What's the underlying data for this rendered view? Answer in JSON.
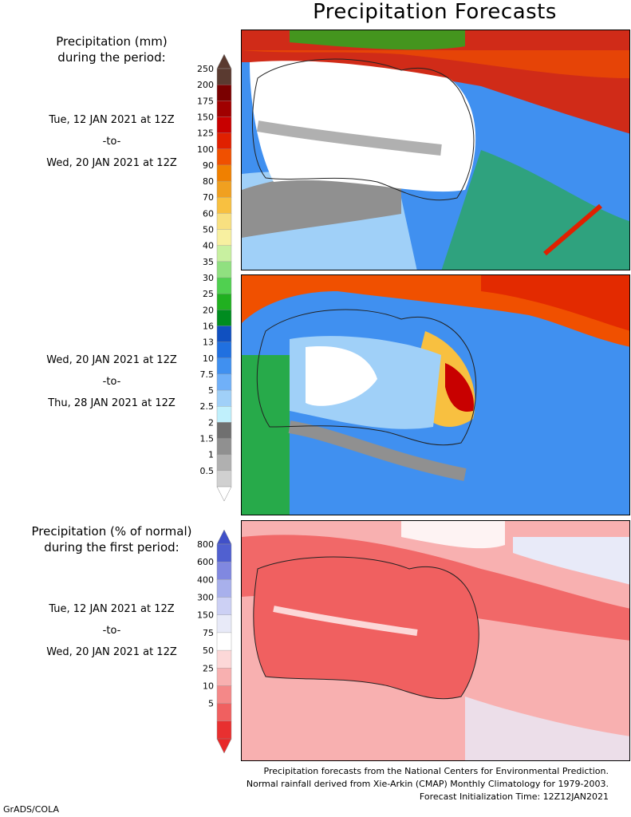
{
  "title": "Precipitation Forecasts",
  "precip_label": {
    "line1": "Precipitation (mm)",
    "line2": "during the period:"
  },
  "period1": {
    "start": "Tue, 12 JAN 2021 at 12Z",
    "sep": "-to-",
    "end": "Wed, 20 JAN 2021 at 12Z"
  },
  "period2": {
    "start": "Wed, 20 JAN 2021 at 12Z",
    "sep": "-to-",
    "end": "Thu, 28 JAN 2021 at 12Z"
  },
  "pct_label": {
    "line1": "Precipitation (% of normal)",
    "line2": "during the first period:"
  },
  "period3": {
    "start": "Tue, 12 JAN 2021 at 12Z",
    "sep": "-to-",
    "end": "Wed, 20 JAN 2021 at 12Z"
  },
  "footer": {
    "line1": "Precipitation forecasts from the National Centers for Environmental Prediction.",
    "line2": "Normal rainfall derived from Xie-Arkin (CMAP) Monthly Climatology for 1979-2003.",
    "line3": "Forecast Initialization Time: 12Z12JAN2021"
  },
  "credit": "GrADS/COLA",
  "chart_data": [
    {
      "type": "heatmap",
      "title": "Precipitation (mm)",
      "legend_levels": [
        "250",
        "200",
        "175",
        "150",
        "125",
        "100",
        "90",
        "80",
        "70",
        "60",
        "50",
        "40",
        "35",
        "30",
        "25",
        "20",
        "16",
        "13",
        "10",
        "7.5",
        "5",
        "2.5",
        "2",
        "1.5",
        "1",
        "0.5"
      ],
      "legend_colors": [
        "#5a3a30",
        "#7a0000",
        "#a00000",
        "#c80000",
        "#e02000",
        "#f05000",
        "#f08000",
        "#f0a020",
        "#f8c040",
        "#f8e080",
        "#f8f0a0",
        "#c8f0a0",
        "#90e080",
        "#50d050",
        "#20b020",
        "#008c20",
        "#1050c0",
        "#2070e0",
        "#4090f0",
        "#70b0f8",
        "#a0d0f8",
        "#c0f0fc",
        "#707070",
        "#909090",
        "#b0b0b0",
        "#d0d0d0"
      ],
      "panels": [
        "Tue, 12 JAN 2021 at 12Z -to- Wed, 20 JAN 2021 at 12Z",
        "Wed, 20 JAN 2021 at 12Z -to- Thu, 28 JAN 2021 at 12Z"
      ]
    },
    {
      "type": "heatmap",
      "title": "Precipitation (% of normal)",
      "legend_levels": [
        "800",
        "600",
        "400",
        "300",
        "150",
        "75",
        "50",
        "25",
        "10",
        "5"
      ],
      "legend_colors": [
        "#5060d0",
        "#8088e0",
        "#a8b0ec",
        "#ccd0f4",
        "#e8eaf8",
        "#ffffff",
        "#fcd8d8",
        "#f8b0b0",
        "#f48888",
        "#f06060",
        "#e83030"
      ]
    }
  ]
}
